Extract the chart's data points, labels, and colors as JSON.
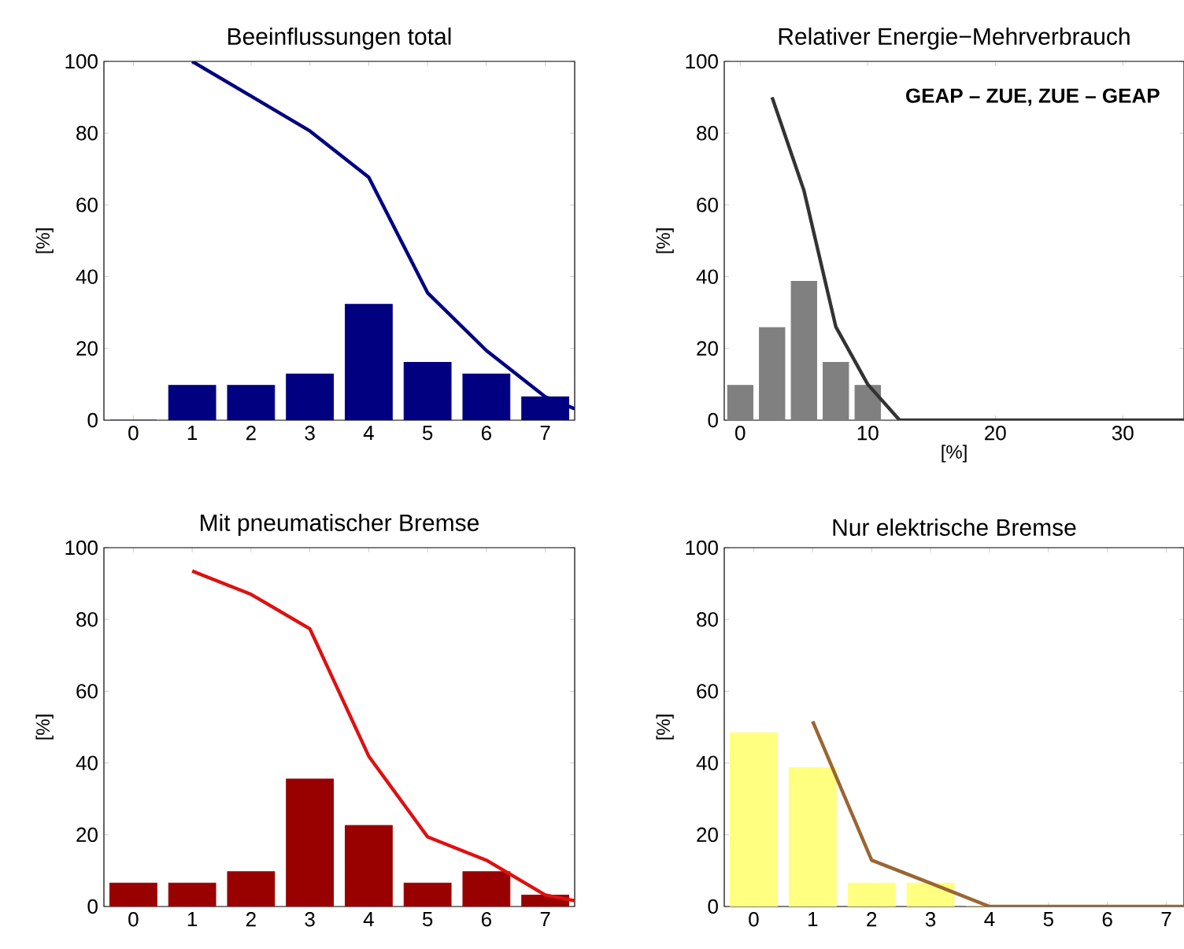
{
  "chart_data": [
    {
      "type": "bar",
      "title": "Beeinflussungen total",
      "ylabel": "[%]",
      "xlim": [
        -0.5,
        7.5
      ],
      "xticks": [
        0,
        1,
        2,
        3,
        4,
        5,
        6,
        7
      ],
      "ylim": [
        0,
        100
      ],
      "yticks": [
        0,
        20,
        40,
        60,
        80,
        100
      ],
      "series": [
        {
          "color": "#000080",
          "x": [
            0,
            1,
            2,
            3,
            4,
            5,
            6,
            7
          ],
          "values": [
            0,
            9.7,
            9.7,
            12.9,
            32.3,
            16.1,
            12.9,
            6.5
          ]
        },
        {
          "type": "line",
          "color": "#000080",
          "x": [
            1,
            2,
            3,
            4,
            5,
            6,
            7,
            7.5
          ],
          "values": [
            100,
            90.3,
            80.6,
            67.7,
            35.5,
            19.4,
            6.5,
            3.2
          ]
        }
      ]
    },
    {
      "type": "bar",
      "title": "Relativer Energie−Mehrverbrauch",
      "xlabel": "[%]",
      "ylabel": "[%]",
      "xlim": [
        -1.25,
        34.8
      ],
      "xticks": [
        0,
        10,
        20,
        30
      ],
      "ylim": [
        0,
        100
      ],
      "yticks": [
        0,
        20,
        40,
        60,
        80,
        100
      ],
      "annotations": [
        "GEAP – ZUE, ZUE – GEAP"
      ],
      "series": [
        {
          "color": "#808080",
          "x": [
            0,
            2.5,
            5,
            7.5,
            10
          ],
          "values": [
            9.7,
            25.8,
            38.7,
            16.1,
            9.7
          ]
        },
        {
          "type": "line",
          "color": "#333333",
          "x": [
            2.5,
            5,
            7.5,
            10,
            12.5,
            34.8
          ],
          "values": [
            90,
            64,
            26,
            10,
            0,
            0
          ]
        }
      ]
    },
    {
      "type": "bar",
      "title": "Mit pneumatischer Bremse",
      "ylabel": "[%]",
      "xlim": [
        -0.5,
        7.5
      ],
      "xticks": [
        0,
        1,
        2,
        3,
        4,
        5,
        6,
        7
      ],
      "ylim": [
        0,
        100
      ],
      "yticks": [
        0,
        20,
        40,
        60,
        80,
        100
      ],
      "series": [
        {
          "color": "#990000",
          "x": [
            0,
            1,
            2,
            3,
            4,
            5,
            6,
            7
          ],
          "values": [
            6.5,
            6.5,
            9.7,
            35.5,
            22.6,
            6.5,
            9.7,
            3.2
          ]
        },
        {
          "type": "line",
          "color": "#dd1111",
          "x": [
            1,
            2,
            3,
            4,
            5,
            6,
            7,
            7.5
          ],
          "values": [
            93.5,
            87,
            77.4,
            41.9,
            19.4,
            12.9,
            3.2,
            1.6
          ]
        }
      ]
    },
    {
      "type": "bar",
      "title": "Nur elektrische Bremse",
      "ylabel": "[%]",
      "xlim": [
        -0.5,
        7.3
      ],
      "xticks": [
        0,
        1,
        2,
        3,
        4,
        5,
        6,
        7
      ],
      "ylim": [
        0,
        100
      ],
      "yticks": [
        0,
        20,
        40,
        60,
        80,
        100
      ],
      "series": [
        {
          "color": "#ffff80",
          "x": [
            0,
            1,
            2,
            3,
            4,
            5,
            6,
            7
          ],
          "values": [
            48.4,
            38.7,
            6.5,
            6.5,
            0,
            0,
            0,
            0
          ]
        },
        {
          "type": "line",
          "color": "#996633",
          "x": [
            1,
            2,
            3,
            4,
            5,
            6,
            7,
            7.3
          ],
          "values": [
            51.6,
            12.9,
            6.5,
            0,
            0,
            0,
            0,
            0
          ]
        }
      ]
    }
  ]
}
